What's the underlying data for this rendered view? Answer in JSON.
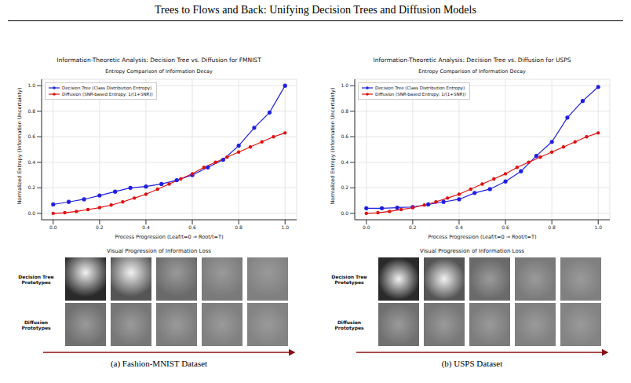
{
  "header": {
    "title": "Trees to Flows and Back: Unifying Decision Trees and Diffusion Models"
  },
  "chart_data": [
    {
      "type": "line",
      "title": "Information-Theoretic Analysis: Decision Tree vs. Diffusion for FMNIST",
      "subtitle": "Entropy Comparison of Information Decay",
      "x_label": "Process Progression (Leaf/t=0 → Root/t=T)",
      "y_label": "Normalized Entropy (Information Uncertainty)",
      "xlim": [
        -0.05,
        1.05
      ],
      "ylim": [
        -0.05,
        1.05
      ],
      "xticks": [
        {
          "value": 0,
          "label": "0.0"
        },
        {
          "value": 0.2,
          "label": "0.2"
        },
        {
          "value": 0.4,
          "label": "0.4"
        },
        {
          "value": 0.6,
          "label": "0.6"
        },
        {
          "value": 0.8,
          "label": "0.8"
        },
        {
          "value": 1,
          "label": "1.0"
        }
      ],
      "yticks": [
        {
          "value": 0,
          "label": "0.0"
        },
        {
          "value": 0.2,
          "label": "0.2"
        },
        {
          "value": 0.4,
          "label": "0.4"
        },
        {
          "value": 0.6,
          "label": "0.6"
        },
        {
          "value": 0.8,
          "label": "0.8"
        },
        {
          "value": 1,
          "label": "1.0"
        }
      ],
      "grid": true,
      "legend": "upper left",
      "series": [
        {
          "name": "Decision Tree (Class Distribution Entropy)",
          "color": "#1f1fe0",
          "marker": "circle",
          "line_style": "solid",
          "x": [
            0,
            0.067,
            0.133,
            0.2,
            0.267,
            0.333,
            0.4,
            0.467,
            0.533,
            0.6,
            0.667,
            0.733,
            0.8,
            0.867,
            0.933,
            1
          ],
          "values": [
            0.07,
            0.09,
            0.11,
            0.14,
            0.17,
            0.2,
            0.21,
            0.23,
            0.26,
            0.3,
            0.36,
            0.42,
            0.53,
            0.67,
            0.79,
            1.0
          ]
        },
        {
          "name": "Diffusion (SNR-based Entropy: 1/(1+SNR))",
          "color": "#e01010",
          "marker": "circle",
          "line_style": "solid",
          "x": [
            0,
            0.05,
            0.1,
            0.15,
            0.2,
            0.25,
            0.3,
            0.35,
            0.4,
            0.45,
            0.5,
            0.55,
            0.6,
            0.65,
            0.7,
            0.75,
            0.8,
            0.85,
            0.9,
            0.95,
            1
          ],
          "values": [
            0.0,
            0.005,
            0.015,
            0.03,
            0.045,
            0.065,
            0.09,
            0.12,
            0.15,
            0.19,
            0.23,
            0.27,
            0.31,
            0.36,
            0.4,
            0.44,
            0.48,
            0.52,
            0.56,
            0.6,
            0.63
          ]
        }
      ]
    },
    {
      "type": "line",
      "title": "Information-Theoretic Analysis: Decision Tree vs. Diffusion for USPS",
      "subtitle": "Entropy Comparison of Information Decay",
      "x_label": "Process Progression (Leaf/t=0 → Root/t=T)",
      "y_label": "Normalized Entropy (Information Uncertainty)",
      "xlim": [
        -0.05,
        1.05
      ],
      "ylim": [
        -0.05,
        1.05
      ],
      "xticks": [
        {
          "value": 0,
          "label": "0.0"
        },
        {
          "value": 0.2,
          "label": "0.2"
        },
        {
          "value": 0.4,
          "label": "0.4"
        },
        {
          "value": 0.6,
          "label": "0.6"
        },
        {
          "value": 0.8,
          "label": "0.8"
        },
        {
          "value": 1,
          "label": "1.0"
        }
      ],
      "yticks": [
        {
          "value": 0,
          "label": "0.0"
        },
        {
          "value": 0.2,
          "label": "0.2"
        },
        {
          "value": 0.4,
          "label": "0.4"
        },
        {
          "value": 0.6,
          "label": "0.6"
        },
        {
          "value": 0.8,
          "label": "0.8"
        },
        {
          "value": 1,
          "label": "1.0"
        }
      ],
      "grid": true,
      "legend": "upper left",
      "series": [
        {
          "name": "Decision Tree (Class Distribution Entropy)",
          "color": "#1f1fe0",
          "marker": "circle",
          "line_style": "solid",
          "x": [
            0,
            0.067,
            0.133,
            0.2,
            0.267,
            0.333,
            0.4,
            0.467,
            0.533,
            0.6,
            0.667,
            0.733,
            0.8,
            0.867,
            0.933,
            1
          ],
          "values": [
            0.04,
            0.04,
            0.045,
            0.05,
            0.07,
            0.09,
            0.11,
            0.16,
            0.19,
            0.25,
            0.33,
            0.45,
            0.56,
            0.75,
            0.88,
            0.99
          ]
        },
        {
          "name": "Diffusion (SNR-based Entropy: 1/(1+SNR))",
          "color": "#e01010",
          "marker": "circle",
          "line_style": "solid",
          "x": [
            0,
            0.05,
            0.1,
            0.15,
            0.2,
            0.25,
            0.3,
            0.35,
            0.4,
            0.45,
            0.5,
            0.55,
            0.6,
            0.65,
            0.7,
            0.75,
            0.8,
            0.85,
            0.9,
            0.95,
            1
          ],
          "values": [
            0.0,
            0.005,
            0.015,
            0.03,
            0.045,
            0.065,
            0.09,
            0.12,
            0.15,
            0.19,
            0.23,
            0.27,
            0.31,
            0.36,
            0.4,
            0.44,
            0.48,
            0.52,
            0.56,
            0.6,
            0.63
          ]
        }
      ]
    }
  ],
  "visual_panels": [
    {
      "title": "Visual Progression of Information Loss",
      "row_labels": [
        "Decision Tree Prototypes",
        "Diffusion Prototypes"
      ],
      "caption": "(a) Fashion-MNIST Dataset"
    },
    {
      "title": "Visual Progression of Information Loss",
      "row_labels": [
        "Decision Tree Prototypes",
        "Diffusion Prototypes"
      ],
      "caption": "(b) USPS Dataset"
    }
  ]
}
